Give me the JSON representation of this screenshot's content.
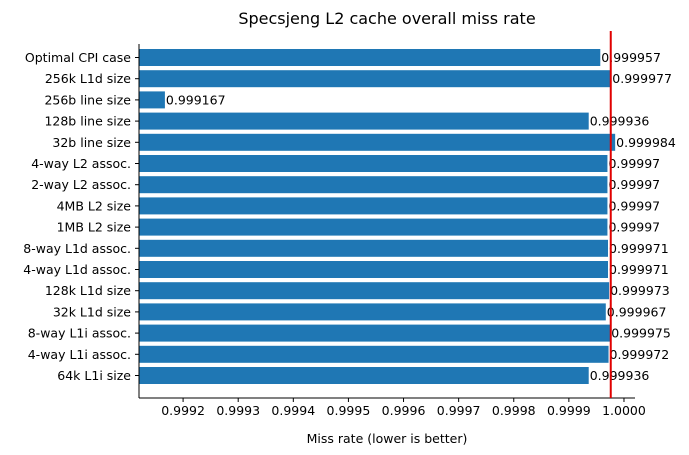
{
  "chart_data": {
    "type": "bar",
    "orientation": "horizontal",
    "title": "Specsjeng L2 cache overall miss rate",
    "xlabel": "Miss rate (lower is better)",
    "ylabel": "",
    "xlim": [
      0.99912,
      1.00002
    ],
    "xticks": [
      0.9992,
      0.9993,
      0.9994,
      0.9995,
      0.9996,
      0.9997,
      0.9998,
      0.9999,
      1.0
    ],
    "xtick_labels": [
      "0.9992",
      "0.9993",
      "0.9994",
      "0.9995",
      "0.9996",
      "0.9997",
      "0.9998",
      "0.9999",
      "1.0000"
    ],
    "reference_line": {
      "x": 0.999976,
      "color": "#e00000"
    },
    "bar_color": "#1f77b4",
    "grid": false,
    "categories": [
      "Optimal CPI case",
      "256k L1d size",
      "256b line size",
      "128b line size",
      "32b line size",
      "4-way L2 assoc.",
      "2-way L2 assoc.",
      "4MB L2 size",
      "1MB L2 size",
      "8-way L1d assoc.",
      "4-way L1d assoc.",
      "128k L1d size",
      "32k L1d size",
      "8-way L1i assoc.",
      "4-way L1i assoc.",
      "64k L1i size"
    ],
    "values": [
      0.999957,
      0.999977,
      0.999167,
      0.999936,
      0.999984,
      0.99997,
      0.99997,
      0.99997,
      0.99997,
      0.999971,
      0.999971,
      0.999973,
      0.999967,
      0.999975,
      0.999972,
      0.999936
    ],
    "value_labels": [
      "0.999957",
      "0.999977",
      "0.999167",
      "0.999936",
      "0.999984",
      "0.99997",
      "0.99997",
      "0.99997",
      "0.99997",
      "0.999971",
      "0.999971",
      "0.999973",
      "0.999967",
      "0.999975",
      "0.999972",
      "0.999936"
    ]
  }
}
